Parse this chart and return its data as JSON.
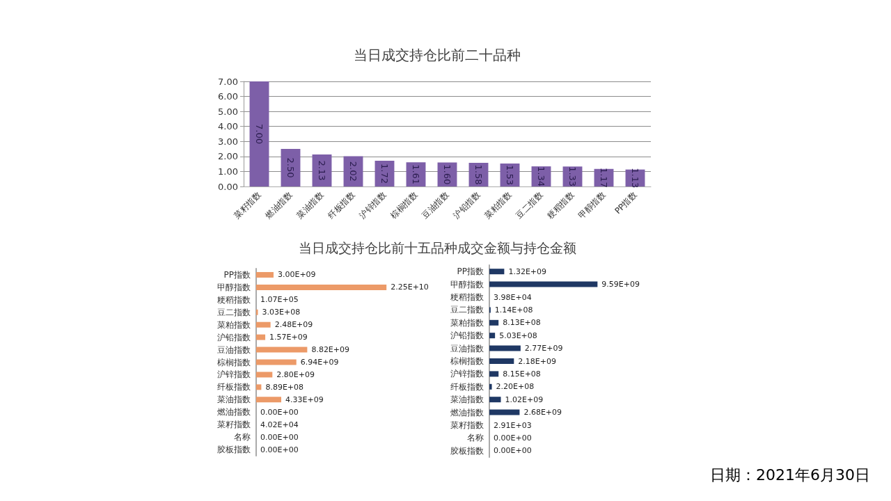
{
  "chart_data": [
    {
      "type": "bar",
      "title": "当日成交持仓比前二十品种",
      "categories": [
        "菜籽指数",
        "燃油指数",
        "菜油指数",
        "纤板指数",
        "沪锌指数",
        "棕榈指数",
        "豆油指数",
        "沪铅指数",
        "菜粕指数",
        "豆二指数",
        "粳稻指数",
        "甲醇指数",
        "PP指数"
      ],
      "values": [
        7.0,
        2.5,
        2.13,
        2.02,
        1.72,
        1.61,
        1.6,
        1.58,
        1.53,
        1.34,
        1.33,
        1.17,
        1.13
      ],
      "value_labels": [
        "7.00",
        "2.50",
        "2.13",
        "2.02",
        "1.72",
        "1.61",
        "1.60",
        "1.58",
        "1.53",
        "1.34",
        "1.33",
        "1.17",
        "1.13"
      ],
      "color": "#7d5fa8",
      "ylim": [
        0,
        7
      ],
      "yticks": [
        {
          "value": 0,
          "label": "0.00"
        },
        {
          "value": 1,
          "label": "1.00"
        },
        {
          "value": 2,
          "label": "2.00"
        },
        {
          "value": 3,
          "label": "3.00"
        },
        {
          "value": 4,
          "label": "4.00"
        },
        {
          "value": 5,
          "label": "5.00"
        },
        {
          "value": 6,
          "label": "6.00"
        },
        {
          "value": 7,
          "label": "7.00"
        }
      ],
      "grid": "y"
    },
    {
      "type": "bar",
      "orientation": "horizontal",
      "title": "当日成交持仓比前十五品种成交金额与持仓金额",
      "categories": [
        "PP指数",
        "甲醇指数",
        "粳稻指数",
        "豆二指数",
        "菜粕指数",
        "沪铅指数",
        "豆油指数",
        "棕榈指数",
        "沪锌指数",
        "纤板指数",
        "菜油指数",
        "燃油指数",
        "菜籽指数",
        "名称",
        "胶板指数"
      ],
      "values": [
        3000000000.0,
        22500000000.0,
        107000.0,
        303000000.0,
        2480000000.0,
        1570000000.0,
        8820000000.0,
        6940000000.0,
        2800000000.0,
        889000000.0,
        4330000000.0,
        0,
        40200.0,
        0,
        0
      ],
      "value_labels": [
        "3.00E+09",
        "2.25E+10",
        "1.07E+05",
        "3.03E+08",
        "2.48E+09",
        "1.57E+09",
        "8.82E+09",
        "6.94E+09",
        "2.80E+09",
        "8.89E+08",
        "4.33E+09",
        "0.00E+00",
        "4.02E+04",
        "0.00E+00",
        "0.00E+00"
      ],
      "color": "#ec9a68",
      "tick_labels": "y"
    },
    {
      "type": "bar",
      "orientation": "horizontal",
      "categories": [
        "PP指数",
        "甲醇指数",
        "粳稻指数",
        "豆二指数",
        "菜粕指数",
        "沪铅指数",
        "豆油指数",
        "棕榈指数",
        "沪锌指数",
        "纤板指数",
        "菜油指数",
        "燃油指数",
        "菜籽指数",
        "名称",
        "胶板指数"
      ],
      "values": [
        1320000000.0,
        9590000000.0,
        39800.0,
        114000000.0,
        813000000.0,
        503000000.0,
        2770000000.0,
        2180000000.0,
        815000000.0,
        220000000.0,
        1020000000.0,
        2680000000.0,
        2910.0,
        0,
        0
      ],
      "value_labels": [
        "1.32E+09",
        "9.59E+09",
        "3.98E+04",
        "1.14E+08",
        "8.13E+08",
        "5.03E+08",
        "2.77E+09",
        "2.18E+09",
        "8.15E+08",
        "2.20E+08",
        "1.02E+09",
        "2.68E+09",
        "2.91E+03",
        "0.00E+00",
        "0.00E+00"
      ],
      "color": "#1f3864",
      "tick_labels": "y",
      "annotations": [
        "日期：2021年6月30日"
      ]
    }
  ]
}
